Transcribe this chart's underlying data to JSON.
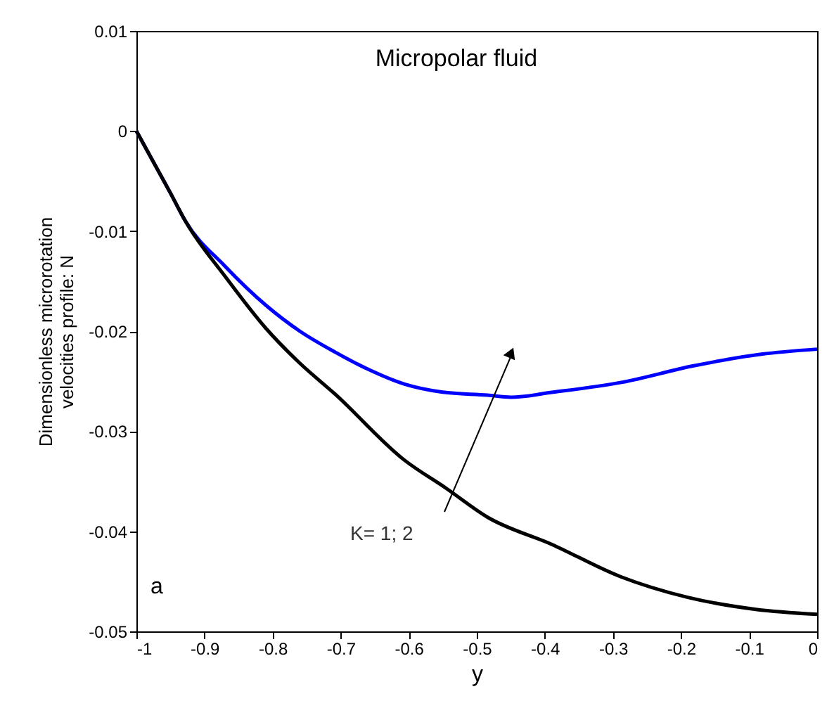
{
  "chart_data": {
    "type": "line",
    "title": "Micropolar fluid",
    "xlabel": "y",
    "ylabel": "Dimensionless microrotation\nvelocities profile: N",
    "series": [
      {
        "color": "#0000ff",
        "x": [
          -1,
          -0.95,
          -0.928,
          -0.87,
          -0.81,
          -0.76,
          -0.708,
          -0.66,
          -0.606,
          -0.55,
          -0.484,
          -0.45,
          -0.388,
          -0.286,
          -0.184,
          -0.082,
          0
        ],
        "values": [
          0,
          -0.0062,
          -0.009,
          -0.0135,
          -0.0174,
          -0.02,
          -0.0221,
          -0.0238,
          -0.0253,
          -0.0261,
          -0.0264,
          -0.0266,
          -0.0261,
          -0.0251,
          -0.0235,
          -0.0223,
          -0.0218
        ]
      },
      {
        "color": "#000000",
        "x": [
          -1,
          -0.95,
          -0.928,
          -0.87,
          -0.81,
          -0.76,
          -0.708,
          -0.606,
          -0.545,
          -0.484,
          -0.39,
          -0.29,
          -0.19,
          -0.09,
          0
        ],
        "values": [
          0,
          -0.0062,
          -0.009,
          -0.0145,
          -0.0197,
          -0.0232,
          -0.0263,
          -0.0329,
          -0.0357,
          -0.0386,
          -0.0413,
          -0.0445,
          -0.0466,
          -0.0478,
          -0.0483
        ]
      }
    ],
    "xlim": [
      -1,
      0
    ],
    "xticks": [
      {
        "value": -1,
        "label": "-1"
      },
      {
        "value": -0.9,
        "label": "-0.9"
      },
      {
        "value": -0.8,
        "label": "-0.8"
      },
      {
        "value": -0.7,
        "label": "-0.7"
      },
      {
        "value": -0.6,
        "label": "-0.6"
      },
      {
        "value": -0.5,
        "label": "-0.5"
      },
      {
        "value": -0.4,
        "label": "-0.4"
      },
      {
        "value": -0.3,
        "label": "-0.3"
      },
      {
        "value": -0.2,
        "label": "-0.2"
      },
      {
        "value": -0.1,
        "label": "-0.1"
      },
      {
        "value": 0,
        "label": "0"
      }
    ],
    "ylim": [
      -0.05,
      0.01
    ],
    "yticks": [
      {
        "value": -0.05,
        "label": "-0.05"
      },
      {
        "value": -0.04,
        "label": "-0.04"
      },
      {
        "value": -0.03,
        "label": "-0.03"
      },
      {
        "value": -0.02,
        "label": "-0.02"
      },
      {
        "value": -0.01,
        "label": "-0.01"
      },
      {
        "value": 0,
        "label": "0"
      },
      {
        "value": 0.01,
        "label": "0.01"
      }
    ],
    "annotations": [
      "K= 1; 2",
      "a"
    ],
    "grid": false,
    "line_style": "solid",
    "marker": "none"
  }
}
